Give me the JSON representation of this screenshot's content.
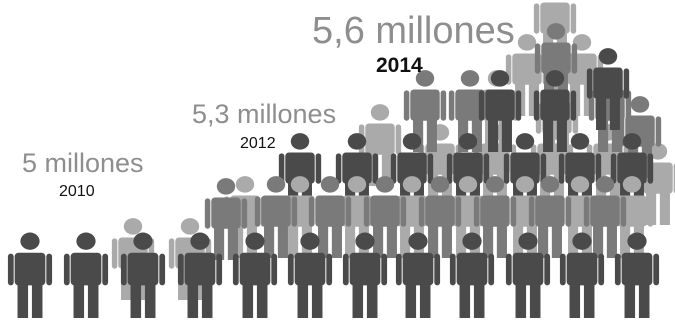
{
  "chart_data": {
    "type": "pictograph",
    "categories": [
      "2010",
      "2012",
      "2014"
    ],
    "values": [
      5.0,
      5.3,
      5.6
    ],
    "value_labels": [
      "5 millones",
      "5,3 millones",
      "5,6 millones"
    ],
    "colors": {
      "dark": "#4a4a4a",
      "mid": "#7a7a7a",
      "light": "#aaaaaa",
      "value_text": "#8e8e8e",
      "year_text": "#111111"
    },
    "icon": "person-icon"
  }
}
